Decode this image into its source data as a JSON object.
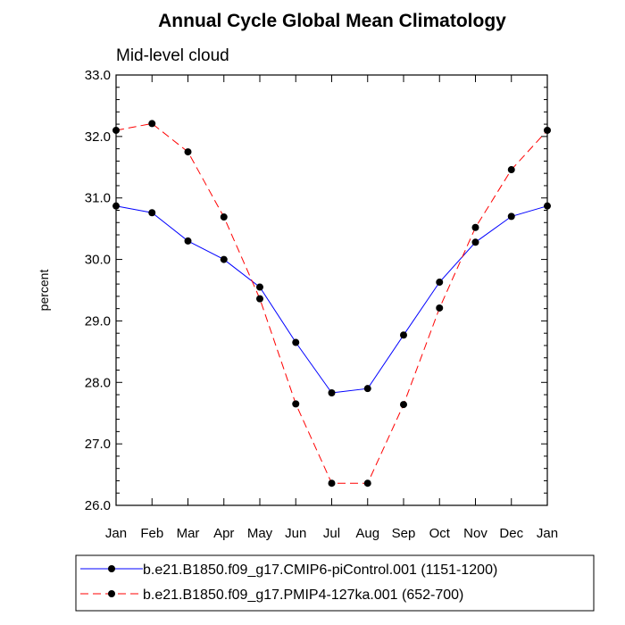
{
  "chart_data": {
    "type": "line",
    "title": "Annual Cycle Global Mean Climatology",
    "subtitle": "Mid-level cloud",
    "xlabel": "",
    "ylabel": "percent",
    "categories": [
      "Jan",
      "Feb",
      "Mar",
      "Apr",
      "May",
      "Jun",
      "Jul",
      "Aug",
      "Sep",
      "Oct",
      "Nov",
      "Dec",
      "Jan"
    ],
    "ylim": [
      26.0,
      33.0
    ],
    "yticks": [
      "26.0",
      "27.0",
      "28.0",
      "29.0",
      "30.0",
      "31.0",
      "32.0",
      "33.0"
    ],
    "grid": false,
    "legend_position": "bottom",
    "series": [
      {
        "name": "b.e21.B1850.f09_g17.CMIP6-piControl.001 (1151-1200)",
        "color": "#0000ff",
        "line_style": "solid",
        "marker": "filled-circle",
        "values": [
          30.87,
          30.76,
          30.3,
          30.0,
          29.55,
          28.65,
          27.83,
          27.9,
          28.77,
          29.63,
          30.28,
          30.7,
          30.87
        ]
      },
      {
        "name": "b.e21.B1850.f09_g17.PMIP4-127ka.001 (652-700)",
        "color": "#ff0000",
        "line_style": "dashed",
        "marker": "filled-circle",
        "values": [
          32.1,
          32.21,
          31.75,
          30.69,
          29.36,
          27.65,
          26.36,
          26.36,
          27.64,
          29.21,
          30.52,
          31.46,
          32.1
        ]
      }
    ]
  }
}
